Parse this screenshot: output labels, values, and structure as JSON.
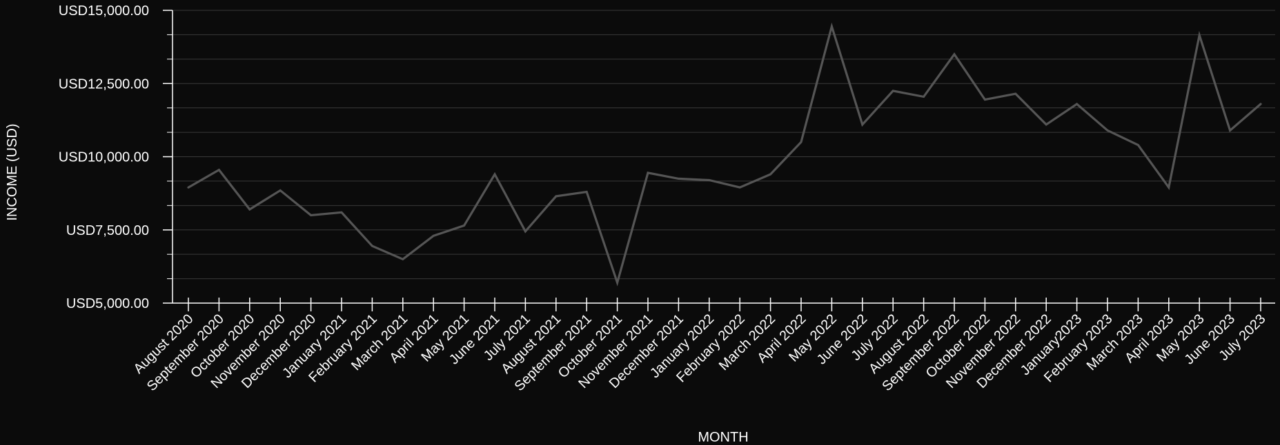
{
  "chart_data": {
    "type": "line",
    "title": "",
    "xlabel": "MONTH",
    "ylabel": "INCOME (USD)",
    "ylim": [
      5000,
      15000
    ],
    "y_ticks": [
      5000,
      7500,
      10000,
      12500,
      15000
    ],
    "y_tick_labels": [
      "USD5,000.00",
      "USD7,500.00",
      "USD10,000.00",
      "USD12,500.00",
      "USD15,000.00"
    ],
    "grid": true,
    "categories": [
      "August 2020",
      "September 2020",
      "October 2020",
      "November 2020",
      "December 2020",
      "January 2021",
      "February 2021",
      "March 2021",
      "April 2021",
      "May 2021",
      "June 2021",
      "July 2021",
      "August 2021",
      "September 2021",
      "October 2021",
      "November 2021",
      "December 2021",
      "January 2022",
      "February 2022",
      "March 2022",
      "April 2022",
      "May 2022",
      "June 2022",
      "July 2022",
      "August 2022",
      "September 2022",
      "October 2022",
      "November 2022",
      "December 2022",
      "January2023",
      "February 2023",
      "March 2023",
      "April 2023",
      "May 2023",
      "June 2023",
      "July 2023"
    ],
    "series": [
      {
        "values": [
          8950,
          9550,
          8200,
          8850,
          8000,
          8100,
          6950,
          6500,
          7300,
          7650,
          9400,
          7450,
          8650,
          8800,
          5700,
          9450,
          9250,
          9200,
          8950,
          9400,
          10500,
          14450,
          11100,
          12250,
          12050,
          13500,
          11950,
          12150,
          11100,
          11800,
          10900,
          10400,
          8950,
          14150,
          10900,
          11800
        ]
      }
    ],
    "colors": {
      "background": "#0b0b0b",
      "line": "#555555",
      "grid": "#3a3a3a",
      "axis": "#ffffff",
      "text": "#ffffff"
    }
  }
}
